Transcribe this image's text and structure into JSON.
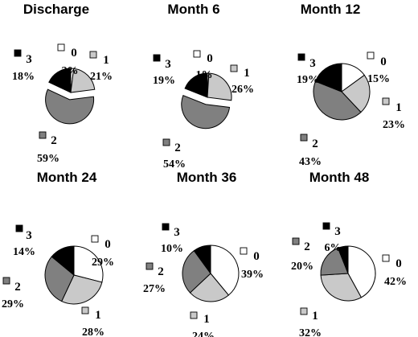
{
  "colors": {
    "0": "#ffffff",
    "1": "#c9c9c9",
    "2": "#808080",
    "3": "#000000"
  },
  "chart_data": [
    {
      "type": "pie",
      "title": "Discharge",
      "categories": [
        "0",
        "1",
        "2",
        "3"
      ],
      "values": [
        2,
        21,
        59,
        18
      ],
      "labels": [
        "2%",
        "21%",
        "59%",
        "18%"
      ],
      "exploded": [
        "2"
      ]
    },
    {
      "type": "pie",
      "title": "Month 6",
      "categories": [
        "0",
        "1",
        "2",
        "3"
      ],
      "values": [
        1,
        26,
        54,
        19
      ],
      "labels": [
        "1%",
        "26%",
        "54%",
        "19%"
      ],
      "exploded": [
        "2"
      ]
    },
    {
      "type": "pie",
      "title": "Month 12",
      "categories": [
        "0",
        "1",
        "2",
        "3"
      ],
      "values": [
        15,
        23,
        43,
        19
      ],
      "labels": [
        "15%",
        "23%",
        "43%",
        "19%"
      ],
      "exploded": []
    },
    {
      "type": "pie",
      "title": "Month 24",
      "categories": [
        "0",
        "1",
        "2",
        "3"
      ],
      "values": [
        29,
        28,
        29,
        14
      ],
      "labels": [
        "29%",
        "28%",
        "29%",
        "14%"
      ],
      "exploded": []
    },
    {
      "type": "pie",
      "title": "Month 36",
      "categories": [
        "0",
        "1",
        "2",
        "3"
      ],
      "values": [
        39,
        24,
        27,
        10
      ],
      "labels": [
        "39%",
        "24%",
        "27%",
        "10%"
      ],
      "exploded": []
    },
    {
      "type": "pie",
      "title": "Month 48",
      "categories": [
        "0",
        "1",
        "2",
        "3"
      ],
      "values": [
        42,
        32,
        20,
        6
      ],
      "labels": [
        "42%",
        "32%",
        "20%",
        "6%"
      ],
      "exploded": []
    }
  ]
}
